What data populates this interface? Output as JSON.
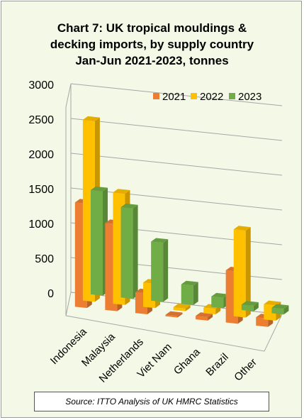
{
  "chart_data": {
    "type": "bar",
    "title_lines": [
      "Chart 7: UK tropical mouldings &",
      "decking imports, by supply country",
      "Jan-Jun 2021-2023, tonnes"
    ],
    "categories": [
      "Indonesia",
      "Malaysia",
      "Netherlands",
      "Viet Nam",
      "Ghana",
      "Brazil",
      "Other"
    ],
    "series": [
      {
        "name": "2021",
        "color": "#ed7d31",
        "values": [
          1500,
          1250,
          300,
          20,
          50,
          750,
          120
        ]
      },
      {
        "name": "2022",
        "color": "#ffc000",
        "values": [
          2600,
          1600,
          350,
          40,
          80,
          1250,
          220
        ]
      },
      {
        "name": "2023",
        "color": "#70ad47",
        "values": [
          1500,
          1300,
          850,
          280,
          150,
          80,
          80
        ]
      }
    ],
    "yticks": [
      "0",
      "500",
      "1000",
      "1500",
      "2000",
      "2500",
      "3000"
    ],
    "ylim": [
      0,
      3000
    ],
    "grid": true,
    "legend_position": "top-right",
    "three_d": true
  },
  "source": "Source: ITTO Analysis of UK HMRC Statistics"
}
